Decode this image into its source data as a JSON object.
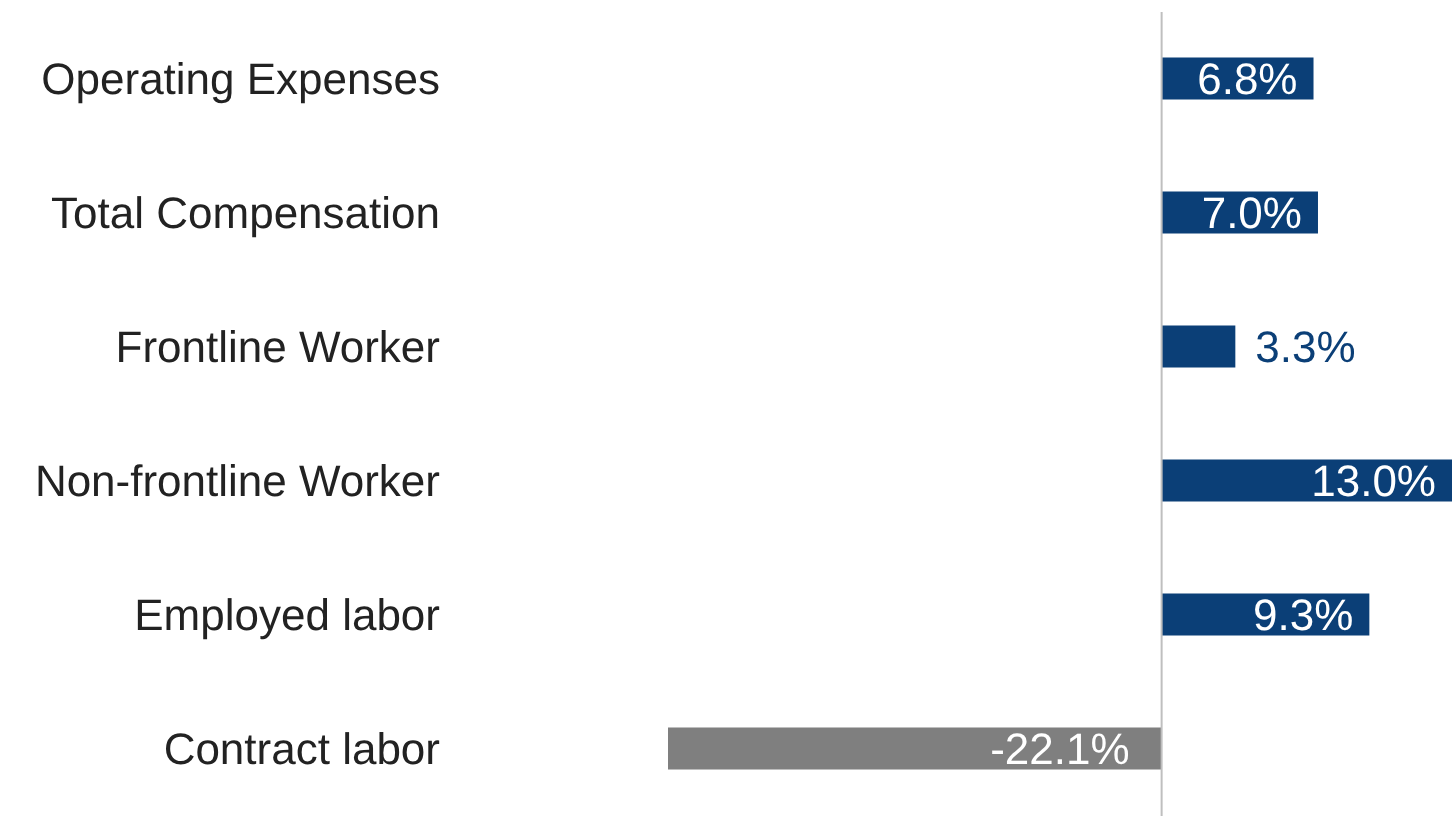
{
  "chart_data": {
    "type": "bar",
    "orientation": "horizontal",
    "categories": [
      "Operating Expenses",
      "Total Compensation",
      "Frontline Worker",
      "Non-frontline Worker",
      "Employed labor",
      "Contract labor"
    ],
    "values": [
      6.8,
      7.0,
      3.3,
      13.0,
      9.3,
      -22.1
    ],
    "colors": [
      "#0b3f77",
      "#0b3f77",
      "#0b3f77",
      "#0b3f77",
      "#0b3f77",
      "#7f7f7f"
    ],
    "value_labels": [
      "6.8%",
      "7.0%",
      "3.3%",
      "13.0%",
      "9.3%",
      "-22.1%"
    ],
    "grid": false,
    "legend": false
  }
}
